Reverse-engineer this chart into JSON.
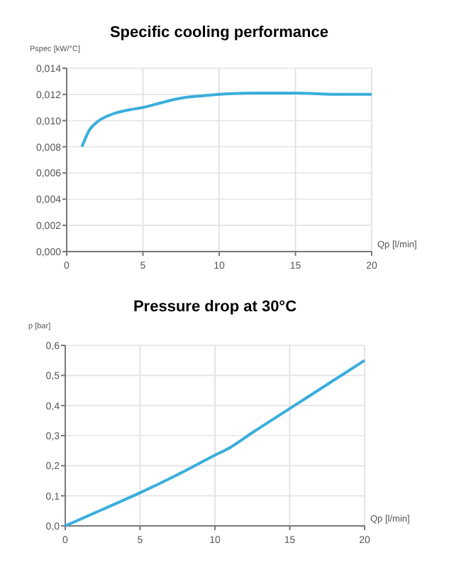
{
  "chart_data": [
    {
      "type": "line",
      "title": "Specific cooling performance",
      "xlabel": "Qp [l/min]",
      "ylabel": "Pspec [kW/°C]",
      "x": [
        1,
        1.5,
        2,
        3,
        4,
        5,
        6,
        7,
        8,
        9,
        10,
        12,
        15,
        18,
        20
      ],
      "series": [
        {
          "color": "#3aaedc",
          "values": [
            0.008,
            0.0093,
            0.0099,
            0.0105,
            0.0108,
            0.011,
            0.0113,
            0.0116,
            0.0118,
            0.0119,
            0.012,
            0.0121,
            0.0121,
            0.012,
            0.012
          ]
        }
      ],
      "xlim": [
        0,
        20
      ],
      "xticks": [
        0,
        5,
        10,
        15,
        20
      ],
      "ylim": [
        0,
        0.014
      ],
      "yticks": [
        {
          "value": 0,
          "label": "0,000"
        },
        {
          "value": 0.002,
          "label": "0,002"
        },
        {
          "value": 0.004,
          "label": "0,004"
        },
        {
          "value": 0.006,
          "label": "0,006"
        },
        {
          "value": 0.008,
          "label": "0,008"
        },
        {
          "value": 0.01,
          "label": "0,010"
        },
        {
          "value": 0.012,
          "label": "0,012"
        },
        {
          "value": 0.014,
          "label": "0,014"
        }
      ],
      "grid": true,
      "marker": "none",
      "line_style": "solid"
    },
    {
      "type": "line",
      "title": "Pressure drop at 30°C",
      "xlabel": "Qp [l/min]",
      "ylabel": "p [bar]",
      "x": [
        0,
        2.5,
        5,
        7.5,
        10,
        11,
        12.5,
        15,
        17.5,
        20
      ],
      "series": [
        {
          "color": "#3aaedc",
          "values": [
            0,
            0.055,
            0.11,
            0.17,
            0.235,
            0.26,
            0.31,
            0.39,
            0.47,
            0.55
          ]
        }
      ],
      "xlim": [
        0,
        20
      ],
      "xticks": [
        0,
        5,
        10,
        15,
        20
      ],
      "ylim": [
        0,
        0.6
      ],
      "yticks": [
        {
          "value": 0,
          "label": "0,0"
        },
        {
          "value": 0.1,
          "label": "0,1"
        },
        {
          "value": 0.2,
          "label": "0,2"
        },
        {
          "value": 0.3,
          "label": "0,3"
        },
        {
          "value": 0.4,
          "label": "0,4"
        },
        {
          "value": 0.5,
          "label": "0,5"
        },
        {
          "value": 0.6,
          "label": "0,6"
        }
      ],
      "grid": true,
      "marker": "none",
      "line_style": "solid"
    }
  ]
}
